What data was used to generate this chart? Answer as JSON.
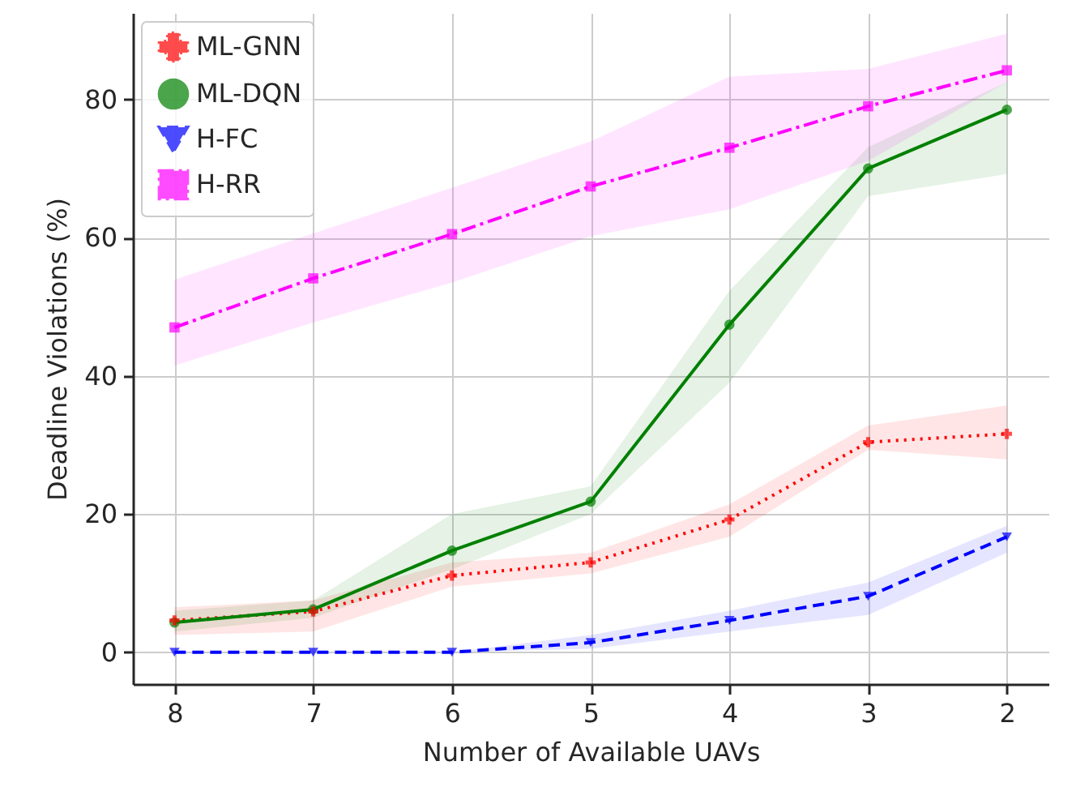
{
  "chart_data": {
    "type": "line",
    "xlabel": "Number of Available UAVs",
    "ylabel": "Deadline Violations (%)",
    "x": [
      8,
      7,
      6,
      5,
      4,
      3,
      2
    ],
    "xlim": [
      8.3,
      1.7
    ],
    "xticks": [
      8,
      7,
      6,
      5,
      4,
      3,
      2
    ],
    "ylim": [
      -4.6,
      92.5
    ],
    "yticks": [
      0,
      20,
      40,
      60,
      80
    ],
    "grid": true,
    "legend": "top left",
    "series": [
      {
        "name": "ML-GNN",
        "color": "#ff0000",
        "marker": "cross",
        "line_style": "dotted",
        "values": [
          4.6,
          5.9,
          11.1,
          13.0,
          19.2,
          30.4,
          31.6
        ],
        "lower": [
          2.5,
          3,
          9.5,
          11.4,
          16.7,
          29.3,
          27.9
        ],
        "upper": [
          6.5,
          7.5,
          13,
          14.4,
          21.4,
          32.8,
          35.7
        ]
      },
      {
        "name": "ML-DQN",
        "color": "#008000",
        "marker": "circle",
        "line_style": "solid",
        "values": [
          4.3,
          6.2,
          14.7,
          21.8,
          47.4,
          70.0,
          78.5
        ],
        "lower": [
          3,
          5,
          12,
          20,
          39,
          66,
          69.2
        ],
        "upper": [
          6,
          7.5,
          20,
          24,
          52.3,
          73.1,
          82.5
        ]
      },
      {
        "name": "H-FC",
        "color": "#0000ff",
        "marker": "triangle",
        "line_style": "dashed",
        "values": [
          0,
          0,
          0,
          1.4,
          4.6,
          8.1,
          16.7
        ],
        "lower": [
          0,
          0,
          0,
          0.5,
          3,
          5.4,
          14.4
        ],
        "upper": [
          0,
          0,
          0,
          2.5,
          6,
          10.1,
          18.3
        ]
      },
      {
        "name": "H-RR",
        "color": "#ff00ff",
        "marker": "square",
        "line_style": "dashdot",
        "values": [
          47.0,
          54.1,
          60.5,
          67.4,
          73.0,
          79.0,
          84.2
        ],
        "lower": [
          41.5,
          47.7,
          53.5,
          60.2,
          64.1,
          71.1,
          82.5
        ],
        "upper": [
          53.9,
          60.6,
          67.2,
          73.9,
          83.3,
          84.4,
          89.5
        ]
      }
    ]
  }
}
